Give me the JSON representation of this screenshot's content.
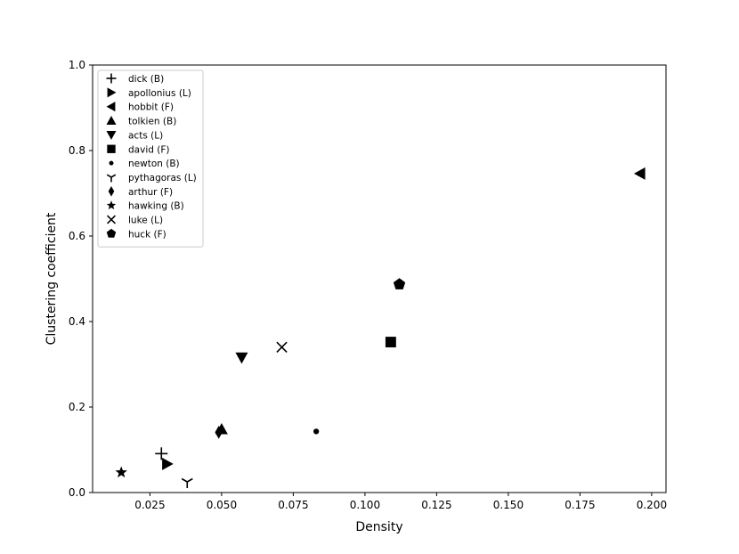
{
  "chart_data": {
    "type": "scatter",
    "xlabel": "Density",
    "ylabel": "Clustering coefficient",
    "xlim": [
      0.005,
      0.205
    ],
    "ylim": [
      0.0,
      1.0
    ],
    "xticks": [
      0.025,
      0.05,
      0.075,
      0.1,
      0.125,
      0.15,
      0.175,
      0.2
    ],
    "xtick_labels": [
      "0.025",
      "0.050",
      "0.075",
      "0.100",
      "0.125",
      "0.150",
      "0.175",
      "0.200"
    ],
    "yticks": [
      0.0,
      0.2,
      0.4,
      0.6,
      0.8,
      1.0
    ],
    "ytick_labels": [
      "0.0",
      "0.2",
      "0.4",
      "0.6",
      "0.8",
      "1.0"
    ],
    "grid": false,
    "legend_position": "top-left",
    "marker_color": "#000000",
    "series": [
      {
        "name": "dick (B)",
        "marker": "plus",
        "x": 0.029,
        "y": 0.091
      },
      {
        "name": "apollonius (L)",
        "marker": "triangle-right",
        "x": 0.031,
        "y": 0.067
      },
      {
        "name": "hobbit (F)",
        "marker": "triangle-left",
        "x": 0.196,
        "y": 0.746
      },
      {
        "name": "tolkien (B)",
        "marker": "triangle-up",
        "x": 0.05,
        "y": 0.148
      },
      {
        "name": "acts (L)",
        "marker": "triangle-down",
        "x": 0.057,
        "y": 0.316
      },
      {
        "name": "david (F)",
        "marker": "square",
        "x": 0.109,
        "y": 0.352
      },
      {
        "name": "newton (B)",
        "marker": "circle",
        "x": 0.083,
        "y": 0.143
      },
      {
        "name": "pythagoras (L)",
        "marker": "tri-down",
        "x": 0.038,
        "y": 0.025
      },
      {
        "name": "arthur (F)",
        "marker": "diamond",
        "x": 0.049,
        "y": 0.141
      },
      {
        "name": "hawking (B)",
        "marker": "star",
        "x": 0.015,
        "y": 0.047
      },
      {
        "name": "luke (L)",
        "marker": "x",
        "x": 0.071,
        "y": 0.34
      },
      {
        "name": "huck (F)",
        "marker": "pentagon",
        "x": 0.112,
        "y": 0.487
      }
    ]
  }
}
